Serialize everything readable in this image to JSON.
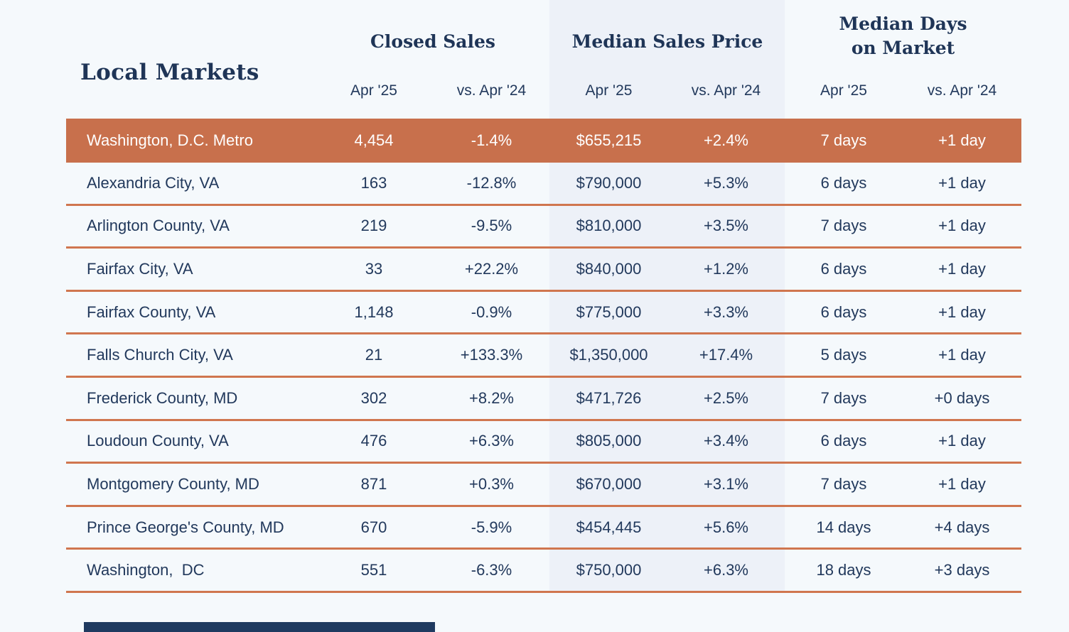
{
  "colors": {
    "page_bg": "#F5F9FC",
    "price_band_bg": "#EDF1F8",
    "highlight_row_bg": "#C8704C",
    "separator_line": "#D0764F",
    "text_navy": "#22395C",
    "header_navy": "#1F3557",
    "highlight_text": "#FFFFFF",
    "footer_bar": "#1F3A60"
  },
  "header": {
    "title": "Local Markets",
    "group_closed_sales": "Closed Sales",
    "group_median_price": "Median Sales Price",
    "group_days_line1": "Median Days",
    "group_days_line2": "on Market",
    "subheaders": [
      "Apr '25",
      "vs. Apr '24",
      "Apr '25",
      "vs. Apr '24",
      "Apr '25",
      "vs. Apr '24"
    ]
  },
  "chart_data": {
    "type": "table",
    "title": "Local Markets",
    "column_groups": [
      "Closed Sales",
      "Median Sales Price",
      "Median Days on Market"
    ],
    "columns": [
      "Local Markets",
      "Closed Sales Apr '25",
      "Closed Sales vs. Apr '24",
      "Median Sales Price Apr '25",
      "Median Sales Price vs. Apr '24",
      "Median Days on Market Apr '25",
      "Median Days on Market vs. Apr '24"
    ],
    "rows": [
      {
        "market": "Washington, D.C. Metro",
        "highlight": true,
        "cells": [
          "4,454",
          "-1.4%",
          "$655,215",
          "+2.4%",
          "7 days",
          "+1 day"
        ]
      },
      {
        "market": "Alexandria City, VA",
        "highlight": false,
        "cells": [
          "163",
          "-12.8%",
          "$790,000",
          "+5.3%",
          "6 days",
          "+1 day"
        ]
      },
      {
        "market": "Arlington County, VA",
        "highlight": false,
        "cells": [
          "219",
          "-9.5%",
          "$810,000",
          "+3.5%",
          "7 days",
          "+1 day"
        ]
      },
      {
        "market": "Fairfax City, VA",
        "highlight": false,
        "cells": [
          "33",
          "+22.2%",
          "$840,000",
          "+1.2%",
          "6 days",
          "+1 day"
        ]
      },
      {
        "market": "Fairfax County, VA",
        "highlight": false,
        "cells": [
          "1,148",
          "-0.9%",
          "$775,000",
          "+3.3%",
          "6 days",
          "+1 day"
        ]
      },
      {
        "market": "Falls Church City, VA",
        "highlight": false,
        "cells": [
          "21",
          "+133.3%",
          "$1,350,000",
          "+17.4%",
          "5 days",
          "+1 day"
        ]
      },
      {
        "market": "Frederick County, MD",
        "highlight": false,
        "cells": [
          "302",
          "+8.2%",
          "$471,726",
          "+2.5%",
          "7 days",
          "+0 days"
        ]
      },
      {
        "market": "Loudoun County, VA",
        "highlight": false,
        "cells": [
          "476",
          "+6.3%",
          "$805,000",
          "+3.4%",
          "6 days",
          "+1 day"
        ]
      },
      {
        "market": "Montgomery County, MD",
        "highlight": false,
        "cells": [
          "871",
          "+0.3%",
          "$670,000",
          "+3.1%",
          "7 days",
          "+1 day"
        ]
      },
      {
        "market": "Prince George's County, MD",
        "highlight": false,
        "cells": [
          "670",
          "-5.9%",
          "$454,445",
          "+5.6%",
          "14 days",
          "+4 days"
        ]
      },
      {
        "market": "Washington,  DC",
        "highlight": false,
        "cells": [
          "551",
          "-6.3%",
          "$750,000",
          "+6.3%",
          "18 days",
          "+3 days"
        ]
      }
    ]
  }
}
